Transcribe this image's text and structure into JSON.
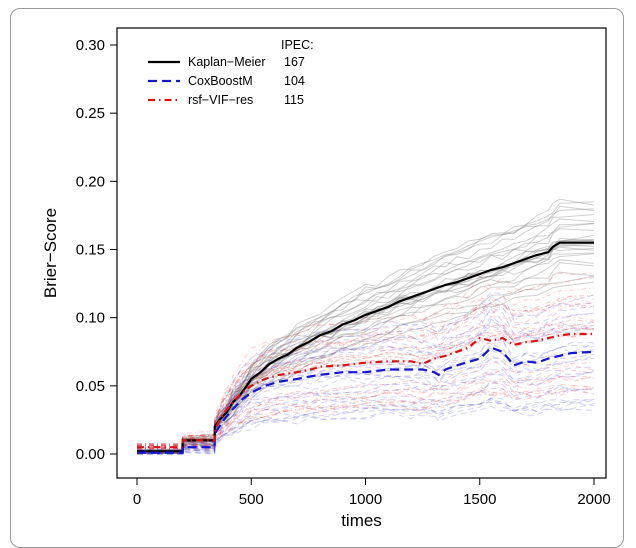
{
  "chart_data": {
    "type": "line",
    "title": "",
    "xlabel": "times",
    "ylabel": "Brier−Score",
    "xlim": [
      0,
      2000
    ],
    "ylim": [
      0,
      0.3
    ],
    "x_ticks": [
      "0",
      "500",
      "1000",
      "1500",
      "2000"
    ],
    "y_ticks": [
      "0.00",
      "0.05",
      "0.10",
      "0.15",
      "0.20",
      "0.25",
      "0.30"
    ],
    "grid": false,
    "legend_title": "IPEC:",
    "legend_position": "top-left",
    "series": [
      {
        "name": "Kaplan−Meier",
        "ipec": "167",
        "color": "#000000",
        "style": "solid",
        "x": [
          0,
          200,
          200,
          340,
          340,
          360,
          390,
          420,
          450,
          480,
          500,
          540,
          580,
          620,
          660,
          700,
          750,
          800,
          850,
          900,
          950,
          1000,
          1050,
          1100,
          1150,
          1200,
          1250,
          1300,
          1350,
          1400,
          1450,
          1500,
          1550,
          1600,
          1650,
          1700,
          1750,
          1800,
          1820,
          1850,
          2000
        ],
        "y": [
          0.002,
          0.002,
          0.01,
          0.01,
          0.02,
          0.025,
          0.03,
          0.038,
          0.043,
          0.05,
          0.055,
          0.06,
          0.066,
          0.07,
          0.073,
          0.078,
          0.082,
          0.087,
          0.09,
          0.095,
          0.098,
          0.102,
          0.105,
          0.108,
          0.112,
          0.115,
          0.118,
          0.121,
          0.124,
          0.126,
          0.129,
          0.132,
          0.135,
          0.137,
          0.14,
          0.143,
          0.146,
          0.148,
          0.152,
          0.155,
          0.155
        ]
      },
      {
        "name": "CoxBoostM",
        "ipec": "104",
        "color": "#1515d6",
        "style": "dashed",
        "x": [
          0,
          200,
          200,
          340,
          340,
          380,
          420,
          460,
          500,
          560,
          620,
          700,
          760,
          800,
          900,
          1000,
          1100,
          1200,
          1250,
          1300,
          1320,
          1350,
          1400,
          1500,
          1550,
          1600,
          1650,
          1700,
          1750,
          1800,
          1850,
          1900,
          2000
        ],
        "y": [
          0.001,
          0.001,
          0.005,
          0.005,
          0.015,
          0.025,
          0.033,
          0.04,
          0.045,
          0.05,
          0.053,
          0.055,
          0.057,
          0.058,
          0.06,
          0.06,
          0.062,
          0.062,
          0.062,
          0.06,
          0.058,
          0.062,
          0.065,
          0.07,
          0.078,
          0.075,
          0.065,
          0.068,
          0.067,
          0.07,
          0.072,
          0.074,
          0.075
        ]
      },
      {
        "name": "rsf−VIF−res",
        "ipec": "115",
        "color": "#dd1111",
        "style": "dotdash",
        "x": [
          0,
          200,
          200,
          340,
          340,
          380,
          420,
          460,
          500,
          560,
          620,
          700,
          760,
          800,
          900,
          1000,
          1100,
          1200,
          1250,
          1300,
          1350,
          1400,
          1450,
          1500,
          1550,
          1600,
          1650,
          1700,
          1750,
          1800,
          1850,
          1900,
          2000
        ],
        "y": [
          0.005,
          0.005,
          0.01,
          0.01,
          0.018,
          0.03,
          0.038,
          0.045,
          0.05,
          0.055,
          0.058,
          0.06,
          0.062,
          0.064,
          0.065,
          0.067,
          0.068,
          0.068,
          0.066,
          0.07,
          0.072,
          0.075,
          0.078,
          0.085,
          0.083,
          0.085,
          0.08,
          0.082,
          0.083,
          0.085,
          0.087,
          0.088,
          0.088
        ]
      }
    ]
  }
}
